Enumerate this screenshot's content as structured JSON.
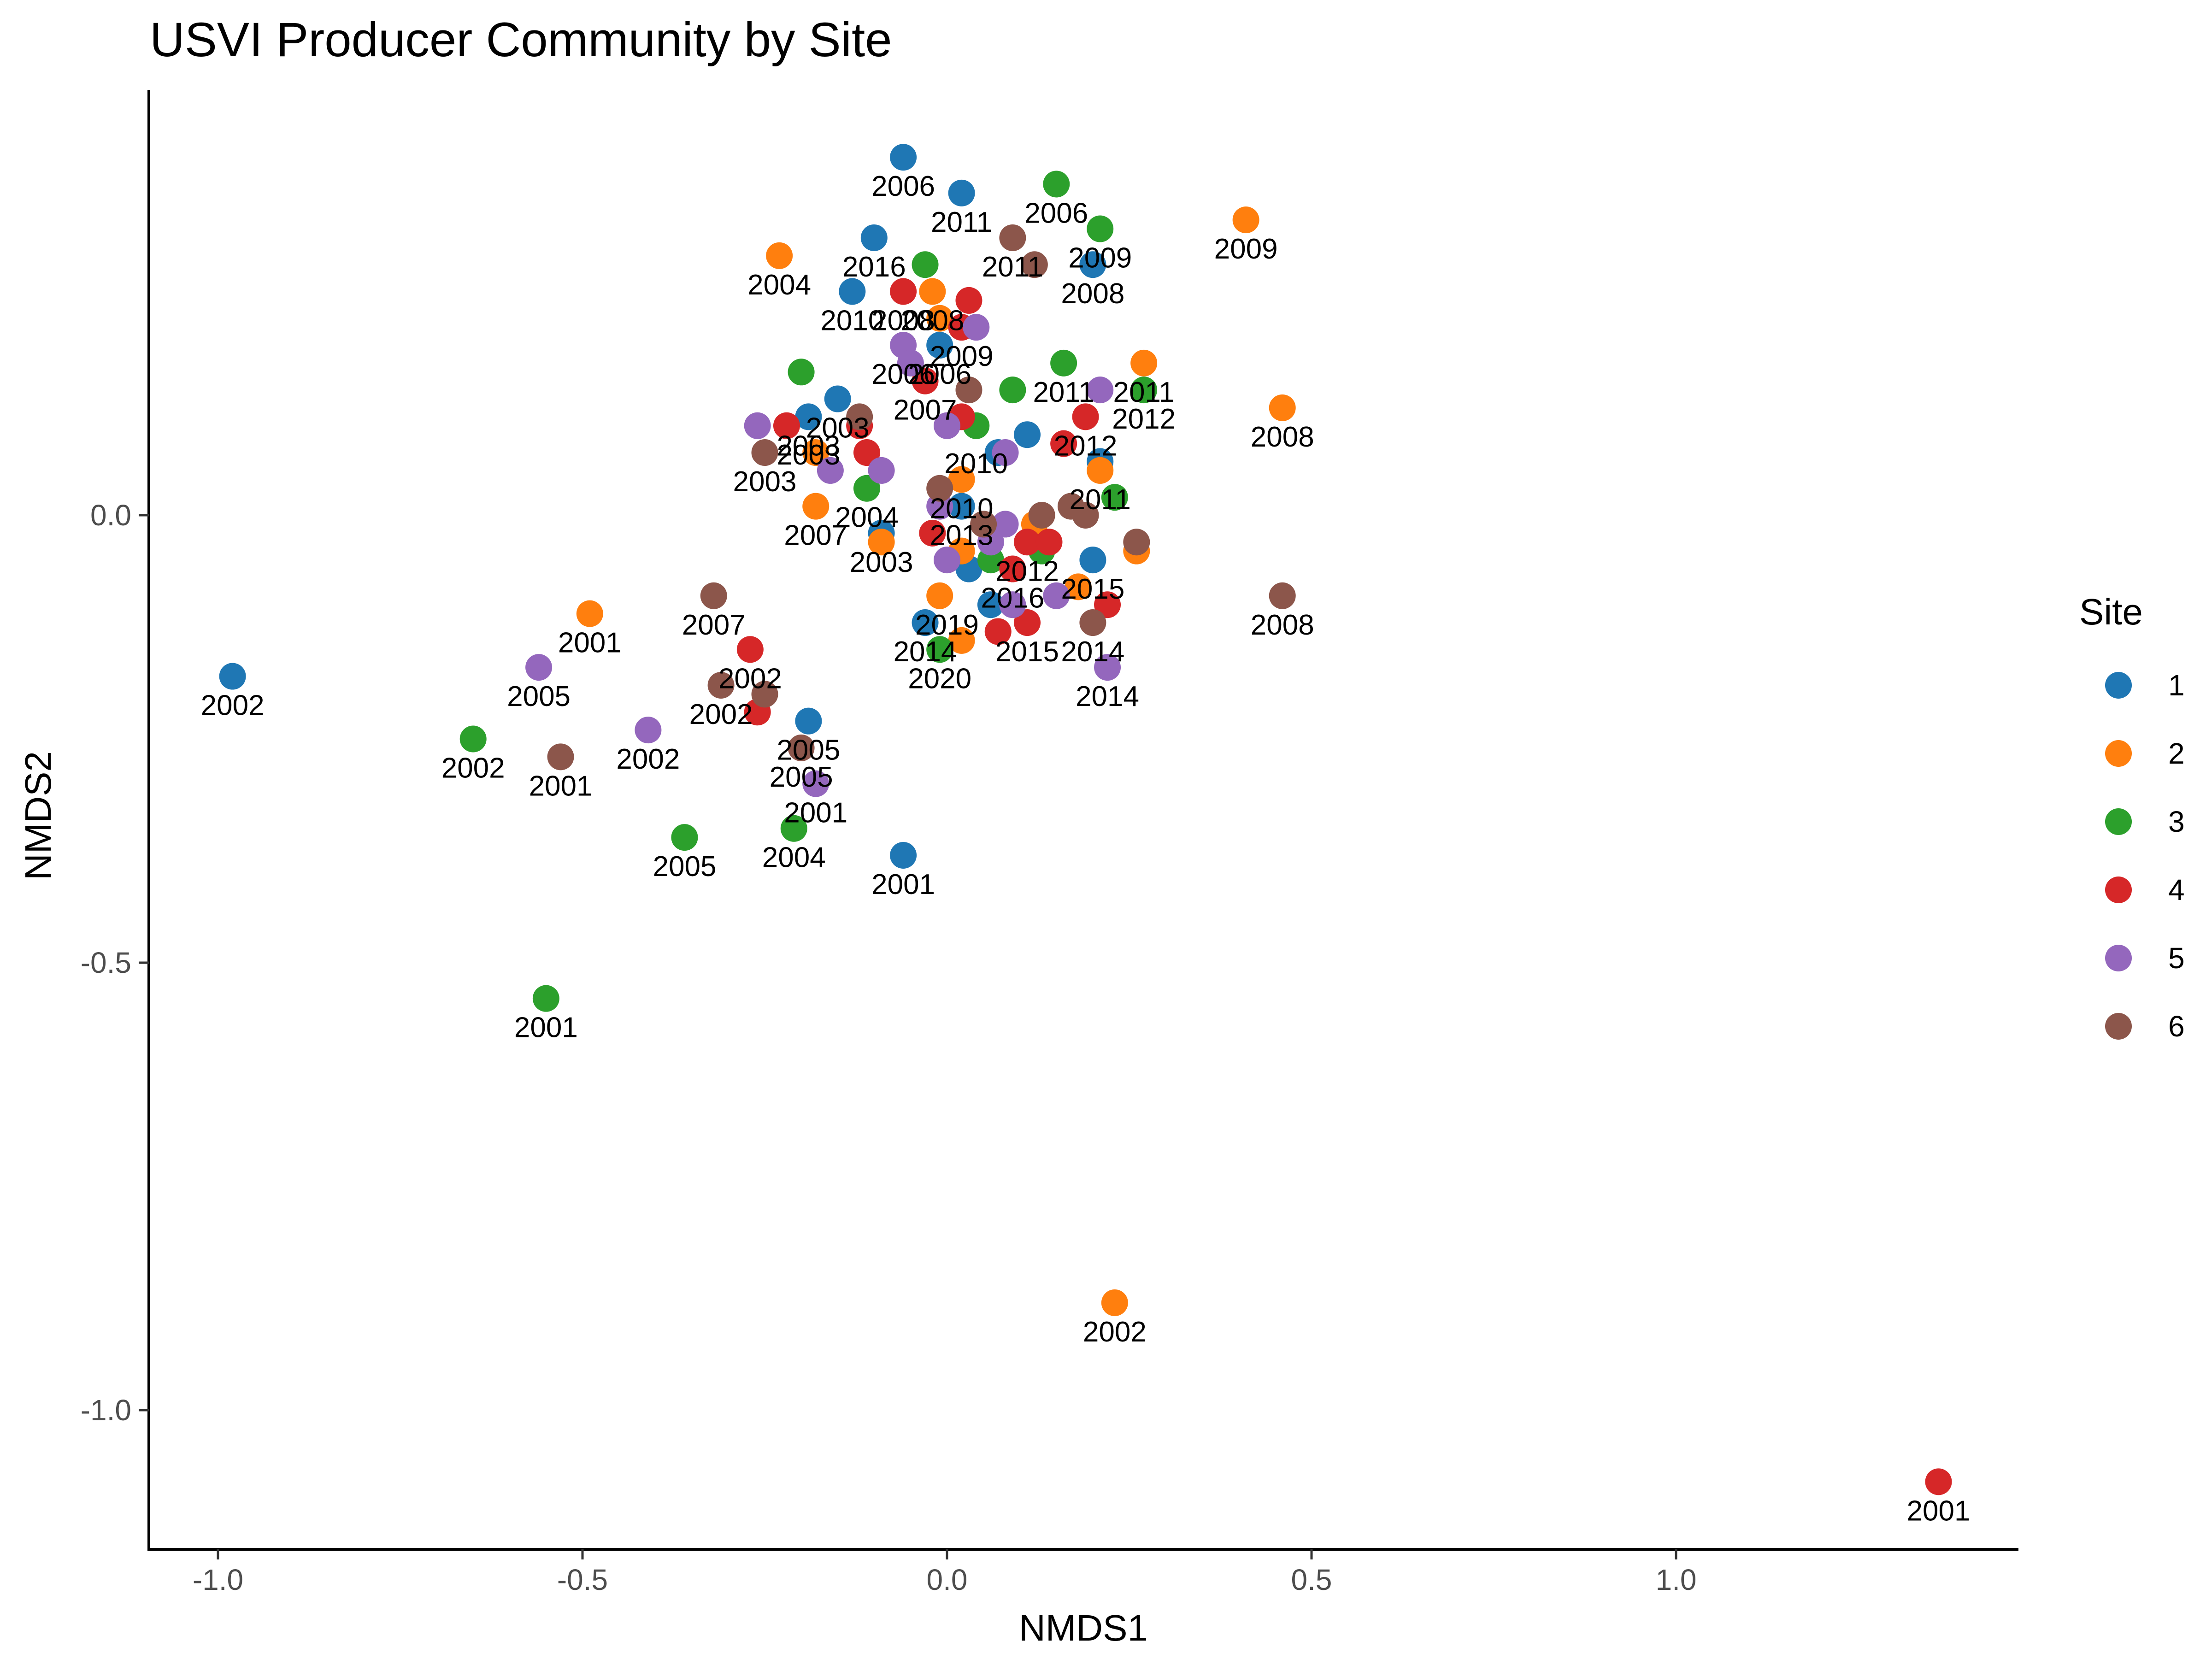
{
  "chart_data": {
    "type": "scatter",
    "title": "USVI Producer Community by Site",
    "xlabel": "NMDS1",
    "ylabel": "NMDS2",
    "xlim": [
      -1.1,
      1.45
    ],
    "ylim": [
      -1.16,
      0.47
    ],
    "x_ticks": [
      {
        "value": -1.0,
        "label": "-1.0"
      },
      {
        "value": -0.5,
        "label": "-0.5"
      },
      {
        "value": 0.0,
        "label": "0.0"
      },
      {
        "value": 0.5,
        "label": "0.5"
      },
      {
        "value": 1.0,
        "label": "1.0"
      }
    ],
    "y_ticks": [
      {
        "value": 0.0,
        "label": "0.0"
      },
      {
        "value": -0.5,
        "label": "-0.5"
      },
      {
        "value": -1.0,
        "label": "-1.0"
      }
    ],
    "grid": false,
    "legend": {
      "title": "Site",
      "position": "right"
    },
    "series": [
      {
        "name": "1",
        "color": "#1f77b4",
        "points": [
          {
            "x": -0.06,
            "y": 0.4,
            "label": "2006"
          },
          {
            "x": 0.02,
            "y": 0.36,
            "label": "2011"
          },
          {
            "x": -0.1,
            "y": 0.31,
            "label": "2016"
          },
          {
            "x": 0.2,
            "y": 0.28,
            "label": "2008"
          },
          {
            "x": -0.13,
            "y": 0.25,
            "label": "2010"
          },
          {
            "x": -0.01,
            "y": 0.19,
            "label": "2006"
          },
          {
            "x": -0.15,
            "y": 0.13,
            "label": "2003"
          },
          {
            "x": -0.19,
            "y": 0.11,
            "label": "2003"
          },
          {
            "x": 0.11,
            "y": 0.09,
            "label": ""
          },
          {
            "x": 0.07,
            "y": 0.07,
            "label": ""
          },
          {
            "x": 0.21,
            "y": 0.06,
            "label": ""
          },
          {
            "x": 0.02,
            "y": 0.01,
            "label": "2013"
          },
          {
            "x": -0.09,
            "y": -0.02,
            "label": "2003"
          },
          {
            "x": 0.2,
            "y": -0.05,
            "label": "2015"
          },
          {
            "x": 0.03,
            "y": -0.06,
            "label": ""
          },
          {
            "x": 0.06,
            "y": -0.1,
            "label": ""
          },
          {
            "x": -0.03,
            "y": -0.12,
            "label": "2014"
          },
          {
            "x": -0.19,
            "y": -0.23,
            "label": "2005"
          },
          {
            "x": -0.06,
            "y": -0.38,
            "label": "2001"
          },
          {
            "x": -0.98,
            "y": -0.18,
            "label": "2002"
          }
        ]
      },
      {
        "name": "2",
        "color": "#ff7f0e",
        "points": [
          {
            "x": 0.41,
            "y": 0.33,
            "label": "2009"
          },
          {
            "x": -0.23,
            "y": 0.29,
            "label": "2004"
          },
          {
            "x": -0.02,
            "y": 0.25,
            "label": "2008"
          },
          {
            "x": -0.01,
            "y": 0.22,
            "label": ""
          },
          {
            "x": 0.27,
            "y": 0.17,
            "label": "2011"
          },
          {
            "x": 0.46,
            "y": 0.12,
            "label": "2008"
          },
          {
            "x": -0.18,
            "y": 0.07,
            "label": ""
          },
          {
            "x": 0.21,
            "y": 0.05,
            "label": "2011"
          },
          {
            "x": 0.02,
            "y": 0.04,
            "label": "2010"
          },
          {
            "x": -0.18,
            "y": 0.01,
            "label": "2007"
          },
          {
            "x": 0.12,
            "y": -0.01,
            "label": ""
          },
          {
            "x": -0.09,
            "y": -0.03,
            "label": ""
          },
          {
            "x": 0.02,
            "y": -0.04,
            "label": ""
          },
          {
            "x": 0.26,
            "y": -0.04,
            "label": ""
          },
          {
            "x": 0.18,
            "y": -0.08,
            "label": ""
          },
          {
            "x": -0.01,
            "y": -0.09,
            "label": ""
          },
          {
            "x": 0.02,
            "y": -0.14,
            "label": ""
          },
          {
            "x": -0.49,
            "y": -0.11,
            "label": "2001"
          },
          {
            "x": 0.23,
            "y": -0.88,
            "label": "2002"
          }
        ]
      },
      {
        "name": "3",
        "color": "#2ca02c",
        "points": [
          {
            "x": 0.15,
            "y": 0.37,
            "label": "2006"
          },
          {
            "x": 0.21,
            "y": 0.32,
            "label": "2009"
          },
          {
            "x": -0.03,
            "y": 0.28,
            "label": ""
          },
          {
            "x": 0.16,
            "y": 0.17,
            "label": "2011"
          },
          {
            "x": -0.2,
            "y": 0.16,
            "label": ""
          },
          {
            "x": 0.09,
            "y": 0.14,
            "label": ""
          },
          {
            "x": 0.27,
            "y": 0.14,
            "label": "2012"
          },
          {
            "x": 0.04,
            "y": 0.1,
            "label": ""
          },
          {
            "x": -0.11,
            "y": 0.03,
            "label": "2004"
          },
          {
            "x": 0.23,
            "y": 0.02,
            "label": ""
          },
          {
            "x": 0.13,
            "y": -0.04,
            "label": ""
          },
          {
            "x": 0.06,
            "y": -0.05,
            "label": ""
          },
          {
            "x": -0.01,
            "y": -0.15,
            "label": "2020"
          },
          {
            "x": -0.65,
            "y": -0.25,
            "label": "2002"
          },
          {
            "x": -0.21,
            "y": -0.35,
            "label": "2004"
          },
          {
            "x": -0.36,
            "y": -0.36,
            "label": "2005"
          },
          {
            "x": -0.55,
            "y": -0.54,
            "label": "2001"
          }
        ]
      },
      {
        "name": "4",
        "color": "#d62728",
        "points": [
          {
            "x": -0.06,
            "y": 0.25,
            "label": ""
          },
          {
            "x": 0.03,
            "y": 0.24,
            "label": ""
          },
          {
            "x": 0.02,
            "y": 0.21,
            "label": "2009"
          },
          {
            "x": -0.03,
            "y": 0.15,
            "label": "2007"
          },
          {
            "x": 0.02,
            "y": 0.11,
            "label": ""
          },
          {
            "x": 0.19,
            "y": 0.11,
            "label": "2012"
          },
          {
            "x": -0.22,
            "y": 0.1,
            "label": ""
          },
          {
            "x": -0.12,
            "y": 0.1,
            "label": ""
          },
          {
            "x": -0.11,
            "y": 0.07,
            "label": ""
          },
          {
            "x": 0.16,
            "y": 0.08,
            "label": ""
          },
          {
            "x": -0.02,
            "y": -0.02,
            "label": ""
          },
          {
            "x": 0.11,
            "y": -0.03,
            "label": "2012"
          },
          {
            "x": 0.14,
            "y": -0.03,
            "label": ""
          },
          {
            "x": 0.09,
            "y": -0.06,
            "label": "2016"
          },
          {
            "x": 0.22,
            "y": -0.1,
            "label": ""
          },
          {
            "x": 0.07,
            "y": -0.13,
            "label": ""
          },
          {
            "x": 0.11,
            "y": -0.12,
            "label": "2015"
          },
          {
            "x": -0.27,
            "y": -0.15,
            "label": "2002"
          },
          {
            "x": -0.26,
            "y": -0.22,
            "label": ""
          },
          {
            "x": 1.36,
            "y": -1.08,
            "label": "2001"
          }
        ]
      },
      {
        "name": "5",
        "color": "#9467bd",
        "points": [
          {
            "x": 0.04,
            "y": 0.21,
            "label": ""
          },
          {
            "x": -0.06,
            "y": 0.19,
            "label": "2006"
          },
          {
            "x": -0.05,
            "y": 0.17,
            "label": ""
          },
          {
            "x": 0.21,
            "y": 0.14,
            "label": ""
          },
          {
            "x": 0.0,
            "y": 0.1,
            "label": ""
          },
          {
            "x": -0.26,
            "y": 0.1,
            "label": ""
          },
          {
            "x": 0.08,
            "y": 0.07,
            "label": ""
          },
          {
            "x": -0.16,
            "y": 0.05,
            "label": ""
          },
          {
            "x": -0.09,
            "y": 0.05,
            "label": ""
          },
          {
            "x": -0.01,
            "y": 0.01,
            "label": ""
          },
          {
            "x": 0.08,
            "y": -0.01,
            "label": ""
          },
          {
            "x": 0.06,
            "y": -0.03,
            "label": ""
          },
          {
            "x": 0.0,
            "y": -0.05,
            "label": ""
          },
          {
            "x": 0.15,
            "y": -0.09,
            "label": ""
          },
          {
            "x": 0.09,
            "y": -0.1,
            "label": ""
          },
          {
            "x": 0.22,
            "y": -0.17,
            "label": "2014"
          },
          {
            "x": -0.56,
            "y": -0.17,
            "label": "2005"
          },
          {
            "x": -0.41,
            "y": -0.24,
            "label": "2002"
          },
          {
            "x": -0.18,
            "y": -0.3,
            "label": "2001"
          }
        ]
      },
      {
        "name": "6",
        "color": "#8c564b",
        "points": [
          {
            "x": 0.09,
            "y": 0.31,
            "label": "2011"
          },
          {
            "x": 0.12,
            "y": 0.28,
            "label": ""
          },
          {
            "x": 0.03,
            "y": 0.14,
            "label": ""
          },
          {
            "x": -0.12,
            "y": 0.11,
            "label": ""
          },
          {
            "x": -0.25,
            "y": 0.07,
            "label": "2003"
          },
          {
            "x": -0.01,
            "y": 0.03,
            "label": ""
          },
          {
            "x": 0.13,
            "y": 0.0,
            "label": ""
          },
          {
            "x": 0.17,
            "y": 0.01,
            "label": ""
          },
          {
            "x": 0.19,
            "y": 0.0,
            "label": ""
          },
          {
            "x": 0.05,
            "y": -0.01,
            "label": ""
          },
          {
            "x": 0.26,
            "y": -0.03,
            "label": ""
          },
          {
            "x": 0.2,
            "y": -0.12,
            "label": "2014"
          },
          {
            "x": 0.46,
            "y": -0.09,
            "label": "2008"
          },
          {
            "x": -0.32,
            "y": -0.09,
            "label": "2007"
          },
          {
            "x": -0.31,
            "y": -0.19,
            "label": "2002"
          },
          {
            "x": -0.25,
            "y": -0.2,
            "label": ""
          },
          {
            "x": -0.2,
            "y": -0.26,
            "label": "2005"
          },
          {
            "x": -0.53,
            "y": -0.27,
            "label": "2001"
          }
        ]
      }
    ],
    "extra_labels": [
      {
        "x": -0.06,
        "y": 0.25,
        "label": "2008"
      },
      {
        "x": -0.19,
        "y": 0.1,
        "label": "2003"
      },
      {
        "x": 0.04,
        "y": 0.09,
        "label": "2010"
      },
      {
        "x": 0.0,
        "y": -0.09,
        "label": "2019"
      }
    ]
  }
}
